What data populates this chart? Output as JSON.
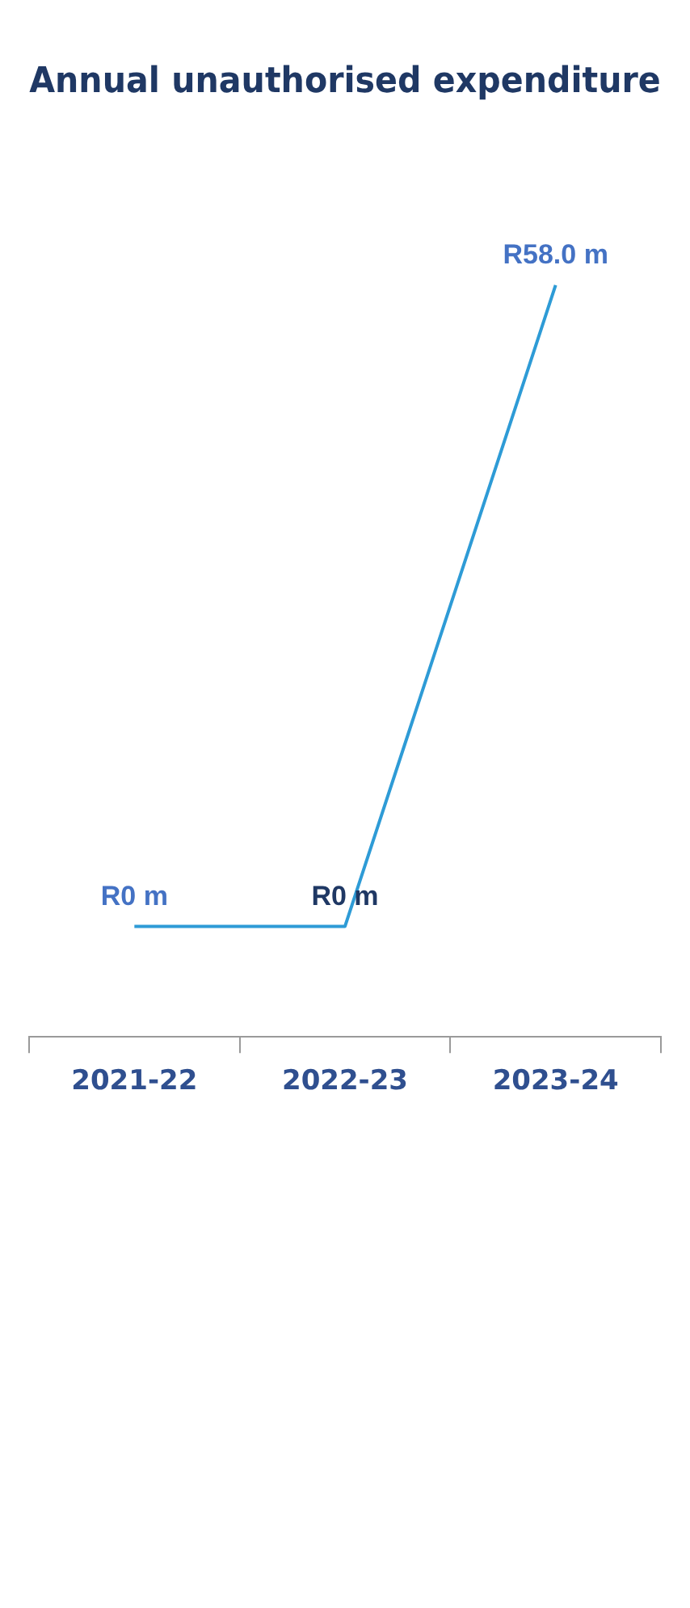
{
  "chart_data": {
    "type": "line",
    "title": "Annual unauthorised expenditure",
    "categories": [
      "2021-22",
      "2022-23",
      "2023-24"
    ],
    "series": [
      {
        "color": "#2e9bd6",
        "values": [
          0,
          0,
          58.0
        ],
        "value_labels": [
          "R0 m",
          "R0 m",
          "R58.0 m"
        ]
      }
    ],
    "grid": false,
    "legend": false,
    "line_style": "solid"
  }
}
